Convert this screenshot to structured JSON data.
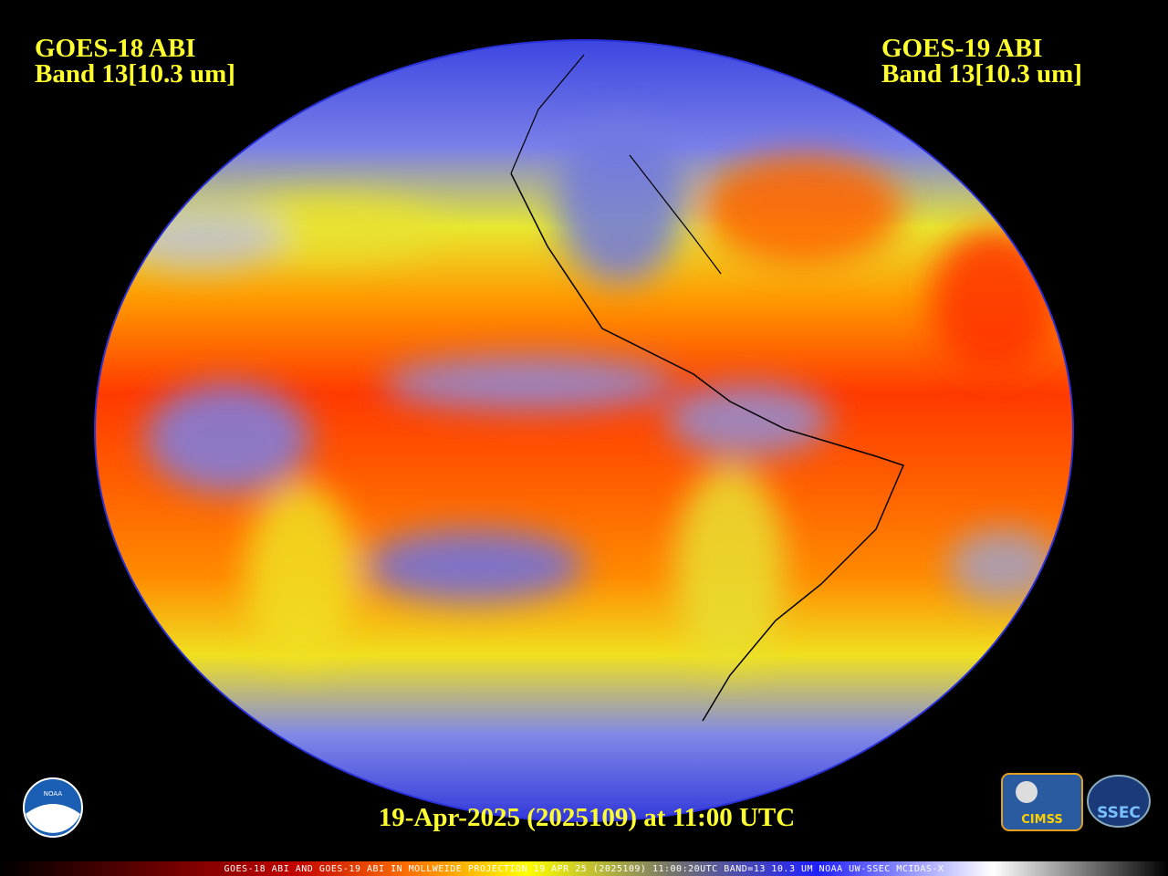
{
  "left_label": {
    "title": "GOES-18 ABI",
    "band": "Band 13[10.3 um]"
  },
  "right_label": {
    "title": "GOES-19 ABI",
    "band": "Band 13[10.3 um]"
  },
  "timestamp": "19-Apr-2025 (2025109) at 11:00 UTC",
  "footer": "GOES-18 ABI AND GOES-19 ABI IN MOLLWEIDE PROJECTION 19 APR 25 (2025109) 11:00:20UTC BAND=13 10.3 UM NOAA UW-SSEC MCIDAS-X",
  "logos": {
    "noaa": "NOAA",
    "cimss": "CIMSS",
    "ssec": "SSEC"
  }
}
